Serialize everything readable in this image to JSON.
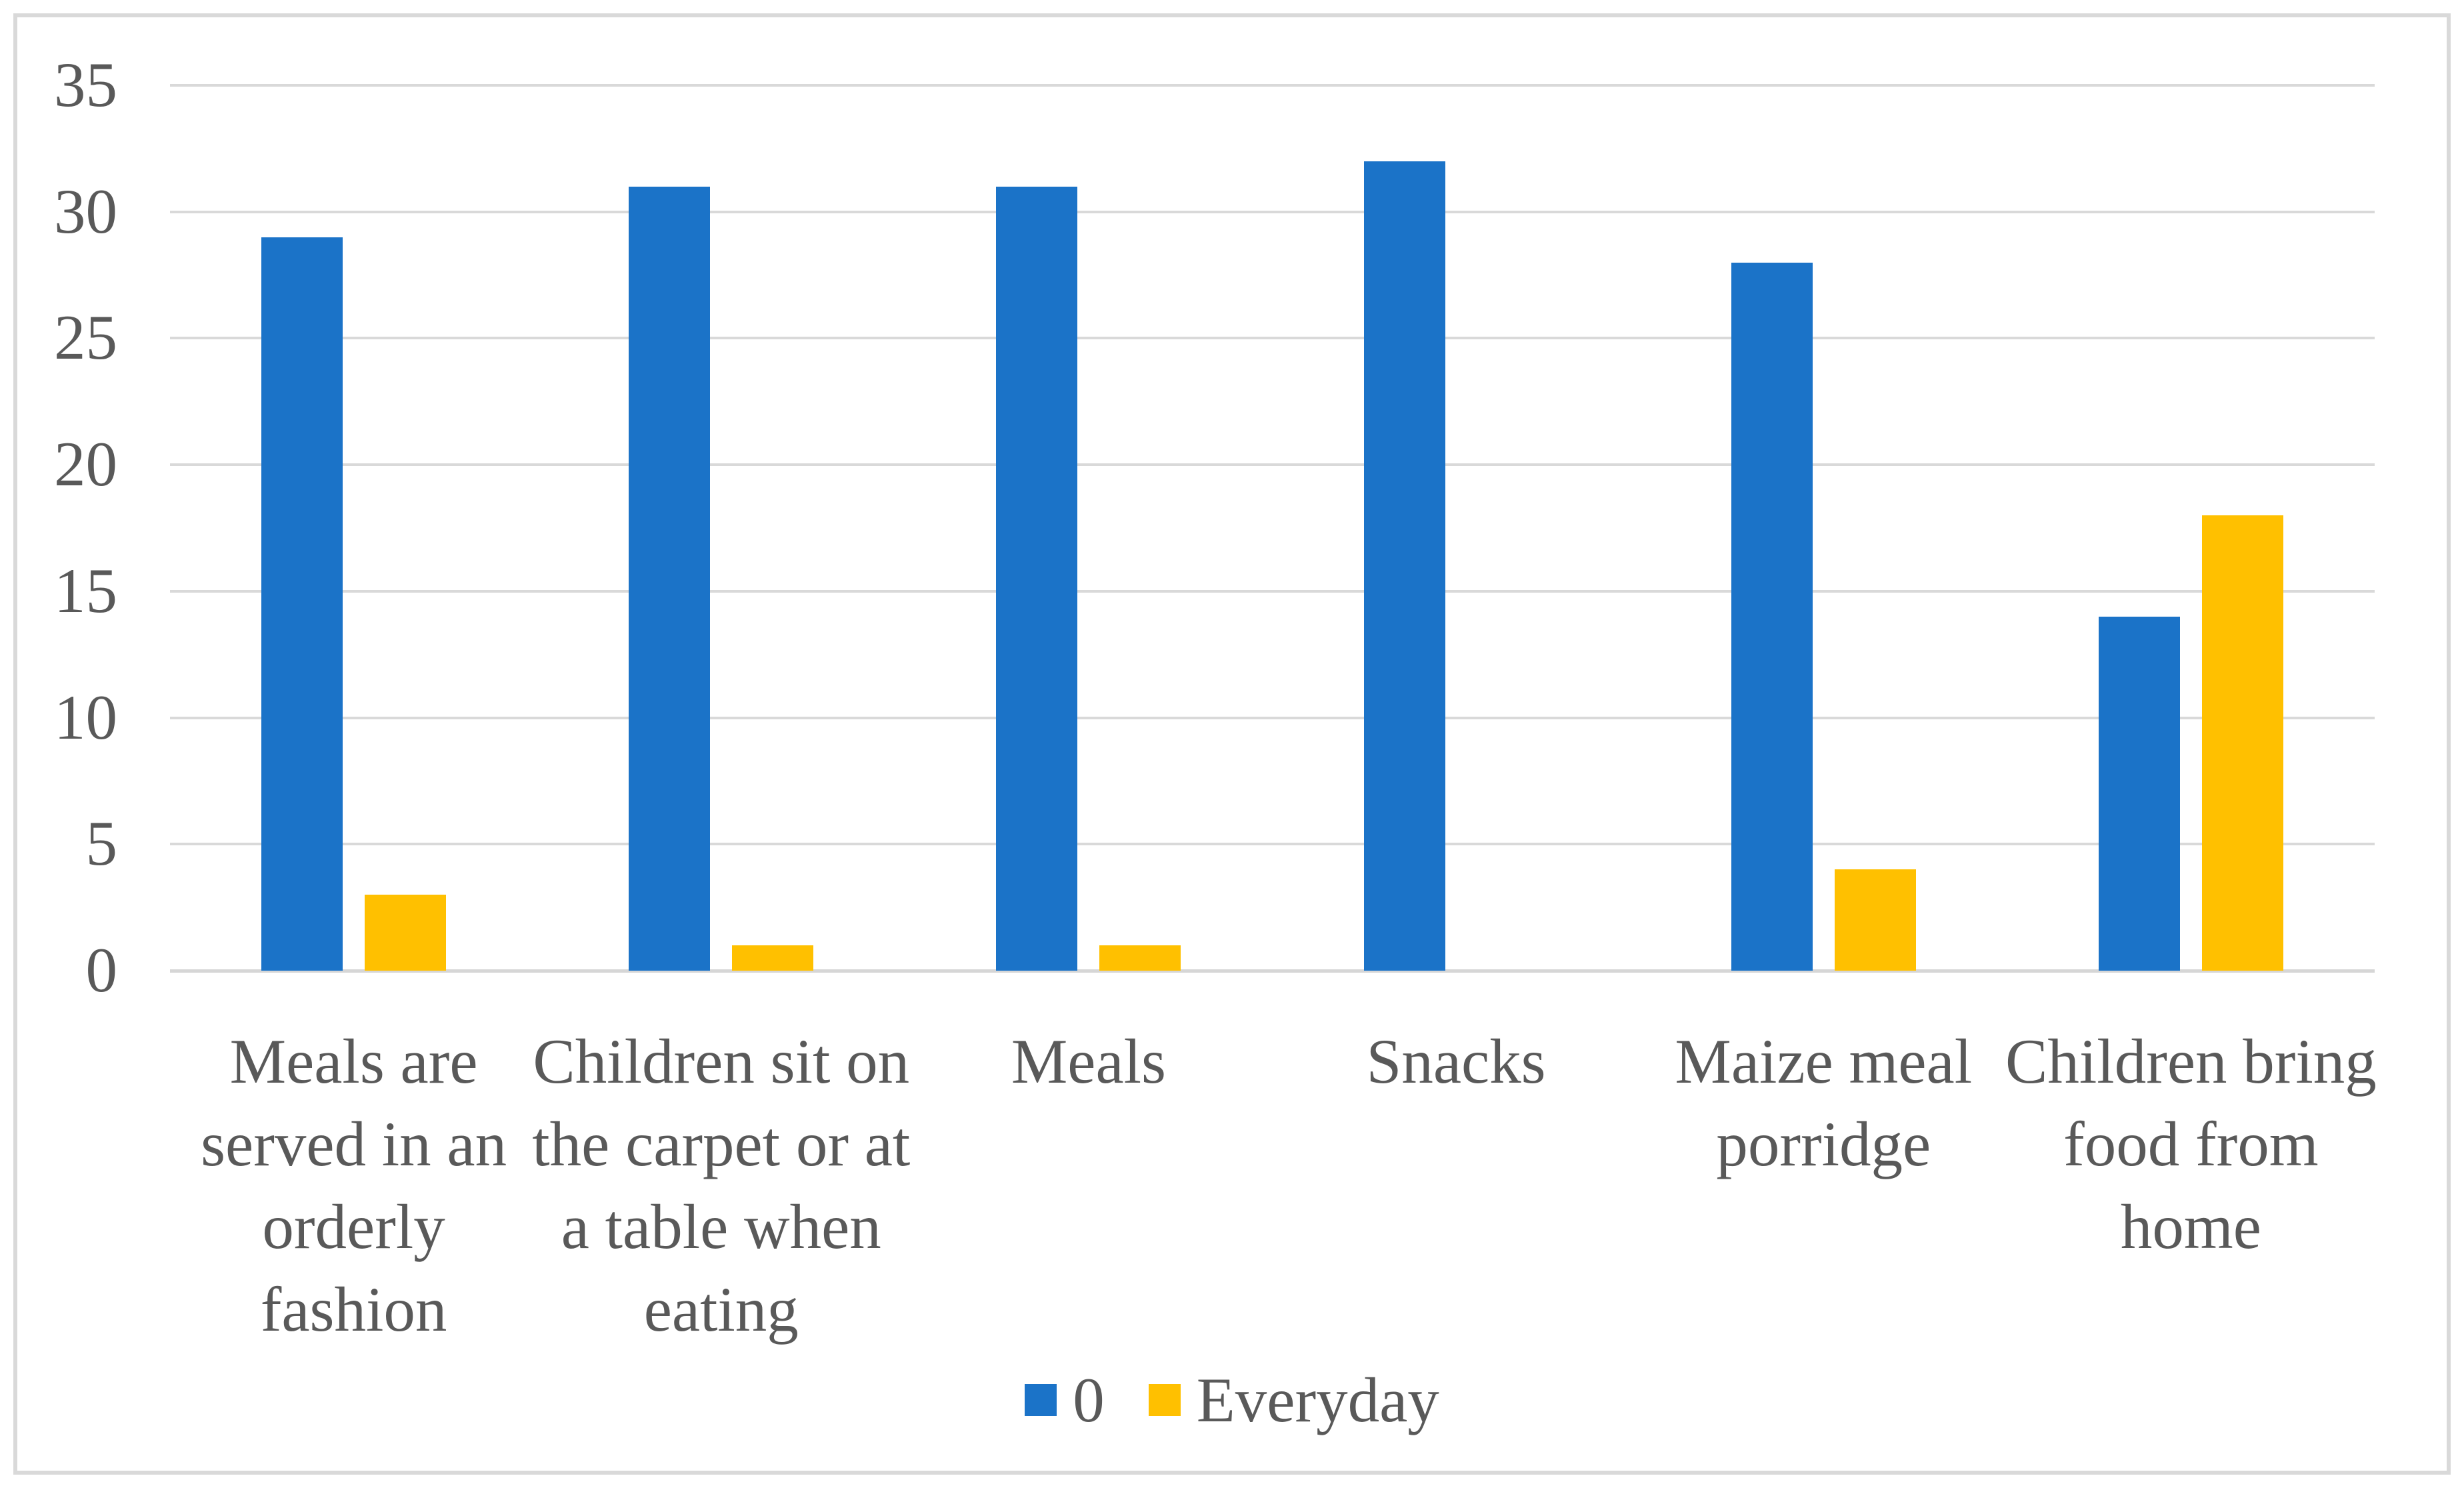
{
  "chart_data": {
    "type": "bar",
    "title": "",
    "xlabel": "",
    "ylabel": "",
    "categories": [
      "Meals are served in an orderly fashion",
      "Children sit on the carpet or at a table when eating",
      "Meals",
      "Snacks",
      "Maize meal porridge",
      "Children bring food from home"
    ],
    "category_lines": [
      [
        "Meals are",
        "served in an",
        "orderly",
        "fashion"
      ],
      [
        "Children sit on",
        "the carpet or at",
        "a table when",
        "eating"
      ],
      [
        "Meals"
      ],
      [
        "Snacks"
      ],
      [
        "Maize meal",
        "porridge"
      ],
      [
        "Children bring",
        "food from",
        "home"
      ]
    ],
    "series": [
      {
        "name": "0",
        "color": "#1B73C8",
        "values": [
          29,
          31,
          31,
          32,
          28,
          14
        ]
      },
      {
        "name": "Everyday",
        "color": "#FFC000",
        "values": [
          3,
          1,
          1,
          0,
          4,
          18
        ]
      }
    ],
    "ylim": [
      0,
      35
    ],
    "yticks": [
      0,
      5,
      10,
      15,
      20,
      25,
      30,
      35
    ],
    "grid": true,
    "legend_position": "bottom"
  },
  "styles": {
    "grid_color": "#D9D9D9",
    "axis_color": "#D6D6D6",
    "text_color": "#595959",
    "border_color": "#D9D9D9",
    "background": "#FFFFFF"
  }
}
